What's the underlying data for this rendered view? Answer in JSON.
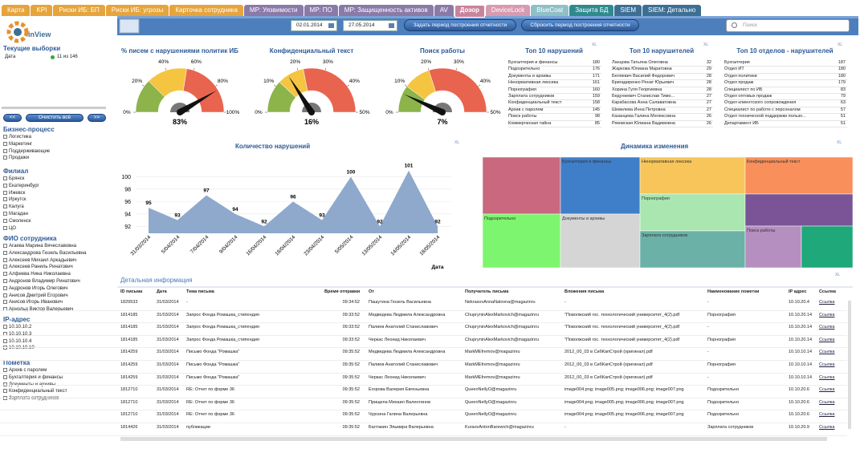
{
  "tabs": [
    {
      "label": "Карта",
      "color": "#e6a43c"
    },
    {
      "label": "KPI",
      "color": "#e6a43c"
    },
    {
      "label": "Риски ИБ: БП",
      "color": "#e6a43c"
    },
    {
      "label": "Риски ИБ: угрозы",
      "color": "#e6a43c"
    },
    {
      "label": "Карточка сотрудника",
      "color": "#e6a43c"
    },
    {
      "label": "МР: Уязвимости",
      "color": "#8a7aa8"
    },
    {
      "label": "МР: ПО",
      "color": "#8a7aa8"
    },
    {
      "label": "МР: Защищенность активов",
      "color": "#8a7aa8"
    },
    {
      "label": "AV",
      "color": "#8a7aa8"
    },
    {
      "label": "Дозор",
      "color": "#c8849c",
      "active": true
    },
    {
      "label": "DeviceLock",
      "color": "#d89ab0"
    },
    {
      "label": "BlueCoat",
      "color": "#8fc0c8"
    },
    {
      "label": "Защита БД",
      "color": "#2f8a8c"
    },
    {
      "label": "SIEM",
      "color": "#3d6f94"
    },
    {
      "label": "SIEM: Детально",
      "color": "#3d6f94"
    }
  ],
  "logo": "inView",
  "export_icon": "XL",
  "sidebar": {
    "current_title": "Текущие выборки",
    "current_label": "Дата",
    "current_value": "11 из 146",
    "prev_button": "<<",
    "clear_button": "Очистить всё",
    "next_button": ">>",
    "filters": [
      {
        "title": "Бизнес-процесс",
        "items": [
          "Логистика",
          "Маркетинг",
          "Поддерживающие",
          "Продажи"
        ]
      },
      {
        "title": "Филиал",
        "items": [
          "Брянск",
          "Екатеринбург",
          "Ижевск",
          "Иркутск",
          "Калуга",
          "Магадан",
          "Смоленск",
          "ЦО"
        ]
      },
      {
        "title": "ФИО сотрудника",
        "items": [
          "Агаева Марина Вячеславовна",
          "Александрова Гюзель Васильевна",
          "Алексеев Михаил Аркадьевич",
          "Алексеев Раниль Ринатович",
          "Алфеева Нина Николаевна",
          "Андронов Владимир Ринатович",
          "Андронов Игорь Олегович",
          "Анисов Дмитрий Егорович",
          "Анисов Игорь Иванович",
          "Арнольд Виктор Валерьевич"
        ]
      },
      {
        "title": "IP-адрес",
        "items": [
          "10.10.10.2",
          "10.10.10.3",
          "10.10.10.4",
          "10.10.10.10"
        ]
      },
      {
        "title": "Пометка",
        "items": [
          "Архив с паролем",
          "Бухгалтерия и финансы",
          "Документы и архивы",
          "Конфиденциальный текст",
          "Зарплата сотрудников"
        ]
      }
    ]
  },
  "toolbar": {
    "date_from": "02.01.2014",
    "date_to": "27.05.2014",
    "set_button": "Задать период построения отчетности",
    "reset_button": "Сбросить период построения отчетности",
    "search_placeholder": "Поиск"
  },
  "gauges": [
    {
      "title": "% писем с нарушениями политик ИБ",
      "value": 83,
      "value_label": "83%",
      "lim": [
        0,
        100
      ],
      "ticks": [
        {
          "value": 0,
          "label": "0%"
        },
        {
          "value": 20,
          "label": "20%"
        },
        {
          "value": 40,
          "label": "40%"
        },
        {
          "value": 60,
          "label": "60%"
        },
        {
          "value": 80,
          "label": "80%"
        },
        {
          "value": 100,
          "label": "100%"
        }
      ],
      "bands": [
        {
          "from": 0,
          "to": 25,
          "color": "#8cb44a"
        },
        {
          "from": 25,
          "to": 55,
          "color": "#f5c542"
        },
        {
          "from": 55,
          "to": 100,
          "color": "#e9644e"
        }
      ]
    },
    {
      "title": "Конфиденциальный текст",
      "value": 16,
      "value_label": "16%",
      "lim": [
        0,
        50
      ],
      "ticks": [
        {
          "value": 0,
          "label": "0%"
        },
        {
          "value": 10,
          "label": "10%"
        },
        {
          "value": 20,
          "label": "20%"
        },
        {
          "value": 30,
          "label": "30%"
        },
        {
          "value": 40,
          "label": "40%"
        },
        {
          "value": 50,
          "label": "50%"
        }
      ],
      "bands": [
        {
          "from": 0,
          "to": 12,
          "color": "#8cb44a"
        },
        {
          "from": 12,
          "to": 22,
          "color": "#f5c542"
        },
        {
          "from": 22,
          "to": 50,
          "color": "#e9644e"
        }
      ]
    },
    {
      "title": "Поиск работы",
      "value": 7,
      "value_label": "7%",
      "lim": [
        0,
        50
      ],
      "ticks": [
        {
          "value": 0,
          "label": "0%"
        },
        {
          "value": 10,
          "label": "10%"
        },
        {
          "value": 20,
          "label": "20%"
        },
        {
          "value": 30,
          "label": "30%"
        },
        {
          "value": 40,
          "label": "40%"
        },
        {
          "value": 50,
          "label": "50%"
        }
      ],
      "bands": [
        {
          "from": 0,
          "to": 10,
          "color": "#8cb44a"
        },
        {
          "from": 10,
          "to": 20,
          "color": "#f5c542"
        },
        {
          "from": 20,
          "to": 50,
          "color": "#e9644e"
        }
      ]
    }
  ],
  "top_tables": [
    {
      "title": "Топ 10 нарушений",
      "rows": [
        [
          "Бухгалтерия и финансы",
          180
        ],
        [
          "Подозрительно",
          176
        ],
        [
          "Документы и архивы",
          171
        ],
        [
          "Ненормативная лексика",
          161
        ],
        [
          "Порнография",
          160
        ],
        [
          "Зарплата сотрудников",
          159
        ],
        [
          "Конфиденциальный текст",
          158
        ],
        [
          "Архив с паролем",
          145
        ],
        [
          "Поиск работы",
          98
        ],
        [
          "Коммерческая тайна",
          85
        ]
      ]
    },
    {
      "title": "Топ 10 нарушителей",
      "rows": [
        [
          "Ланцова Татьяна Олеговна",
          32
        ],
        [
          "Жаркова Юлиана Маратовна",
          29
        ],
        [
          "Беляевич Василий Федорович",
          28
        ],
        [
          "Бригадиренко Ренат Юрьевич",
          28
        ],
        [
          "Хорина Гуля Георгиевна",
          28
        ],
        [
          "Бедункевич Станислав Тимо...",
          27
        ],
        [
          "Карабасова Анна Салаватовна",
          27
        ],
        [
          "Шевелева Инна Петровна",
          27
        ],
        [
          "Казанцева Галина Мелексовна",
          26
        ],
        [
          "Ряковская Юлиана Вадимовна",
          26
        ]
      ]
    },
    {
      "title": "Топ 10 отделов - нарушителей",
      "rows": [
        [
          "Бухгалтерия",
          187
        ],
        [
          "Отдел ИТ",
          180
        ],
        [
          "Отдел политики",
          180
        ],
        [
          "Отдел продаж",
          179
        ],
        [
          "Специалист по ИБ",
          83
        ],
        [
          "Отдел оптовых продаж",
          79
        ],
        [
          "Отдел клиентского сопровождения",
          63
        ],
        [
          "Специалист по работе с персоналом",
          57
        ],
        [
          "Отдел технической поддержки пользо...",
          51
        ],
        [
          "Департамент ИБ",
          51
        ]
      ]
    }
  ],
  "violations_chart": {
    "type": "area",
    "title": "Количество нарушений",
    "x_label": "Дата",
    "color": "#8ea9cc",
    "grid": true,
    "categories": [
      "31/03/2014",
      "5/04/2014",
      "7/04/2014",
      "9/04/2014",
      "16/04/2014",
      "18/04/2014",
      "23/04/2014",
      "5/05/2014",
      "13/05/2014",
      "14/05/2014",
      "18/05/2014"
    ],
    "values": [
      95,
      93,
      97,
      94,
      92,
      96,
      93,
      100,
      92,
      101,
      92
    ],
    "ylim": [
      91,
      102
    ],
    "yticks": [
      92,
      94,
      96,
      98,
      100
    ]
  },
  "treemap": {
    "title": "Динамика изменения",
    "items": [
      {
        "label": null,
        "color": "#c9687f"
      },
      {
        "label": "Бухгалтерия и финансы",
        "color": "#3f7fc9"
      },
      {
        "label": "Ненормативная лексика",
        "color": "#f7c55a"
      },
      {
        "label": "Конфиденциальный текст",
        "color": "#f98f5a"
      },
      {
        "label": "Порнография",
        "color": "#a9e6b0"
      },
      {
        "label": null,
        "color": "#7a5497"
      },
      {
        "label": "Подозрительно",
        "color": "#7ef56e"
      },
      {
        "label": "Документы и архивы",
        "color": "#d5d5d5"
      },
      {
        "label": "Зарплата сотрудников",
        "color": "#6bb1a8"
      },
      {
        "label": "Поиск работы",
        "color": "#b58fc0"
      },
      {
        "label": null,
        "color": "#1fa87a"
      }
    ]
  },
  "detail": {
    "title": "Детальная информация",
    "columns": [
      "ID письма",
      "Дата",
      "Тема письма",
      "Время отправки",
      "От",
      "Получатель письма",
      "Вложения письма",
      "Наименование пометки",
      "IP адрес",
      "Ссылка"
    ],
    "rows": [
      [
        "1829533",
        "31/03/2014",
        "-",
        "09:34:52",
        "Пашутина Гюзель Васильевна",
        "NekrasovAnnaNalovna@magazinru",
        "-",
        "-",
        "10.10.20.4",
        "Ссылка"
      ],
      [
        "1814185",
        "31/03/2014",
        "Запрос Фонда Ромашка_стипендия",
        "09:33:52",
        "Медведева Людмила Александровна",
        "ChupryninAlexMarkovich@magazinru",
        "\"Поволжский гос. технологический университет_4(2).pdf",
        "Порнография",
        "10.10.20.14",
        "Ссылка"
      ],
      [
        "1814185",
        "31/03/2014",
        "Запрос Фонда Ромашка_стипендия",
        "09:33:52",
        "Палиев Анатолий Станиславович",
        "ChupryninAlexMarkovich@magazinru",
        "\"Поволжский гос. технологический университет_4(2).pdf",
        "-",
        "10.10.20.14",
        "Ссылка"
      ],
      [
        "1814185",
        "31/03/2014",
        "Запрос Фонда Ромашка_стипендия",
        "09:33:52",
        "Черкас Леонид Николаевич",
        "ChupryninAlexMarkovich@magazinru",
        "\"Поволжский гос. технологический университет_4(2).pdf",
        "Порнография",
        "10.10.20.14",
        "Ссылка"
      ],
      [
        "1814259",
        "31/03/2014",
        "Письмо Фонда \"Ромашка\"",
        "09:35:52",
        "Медведева Людмила Александровна",
        "MarkMEfremov@magazinru",
        "2012_00_03 в СибКапСтрой (оригинал).pdf",
        "-",
        "10.10.10.14",
        "Ссылка"
      ],
      [
        "1814259",
        "31/03/2014",
        "Письмо Фонда \"Ромашка\"",
        "09:35:52",
        "Палиев Анатолий Станиславович",
        "MarkMEfremov@magazinru",
        "2012_00_03 в СибКапСтрой (оригинал).pdf",
        "Порнография",
        "10.10.10.14",
        "Ссылка"
      ],
      [
        "1814259",
        "31/03/2014",
        "Письмо Фонда \"Ромашка\"",
        "09:35:52",
        "Черкас Леонид Николаевич",
        "MarkMEfremov@magazinru",
        "2012_00_03 в СибКапСтрой (оригинал).pdf",
        "-",
        "10.10.10.14",
        "Ссылка"
      ],
      [
        "1812710",
        "31/03/2014",
        "RE: Отчет по форме 36",
        "09:35:52",
        "Егорова Валерия Евгеньевна",
        "QueenNellyO@magazinru",
        "image004.png; image005.png; image006.png; image007.png",
        "Подозрительно",
        "10.10.20.6",
        "Ссылка"
      ],
      [
        "1812710",
        "31/03/2014",
        "RE: Отчет по форме 36",
        "09:35:52",
        "Прищепа Михаил Валентинов",
        "QueenNellyO@magazinru",
        "image004.png; image005.png; image006.png; image007.png",
        "Подозрительно",
        "10.10.20.6",
        "Ссылка"
      ],
      [
        "1812710",
        "31/03/2014",
        "RE: Отчет по форме 36",
        "09:35:52",
        "Чурсина Галина Валерьевна",
        "QueenNellyO@magazinru",
        "image004.png; image005.png; image006.png; image007.png",
        "Подозрительно",
        "10.10.20.6",
        "Ссылка"
      ],
      [
        "1814426",
        "31/03/2014",
        "публикации",
        "09:35:52",
        "Балтакин Эльмира Валерьевна",
        "KuraovAntonBarewich@magazinru",
        "-",
        "Зарплата сотрудников",
        "10.10.20.9",
        "Ссылка"
      ]
    ]
  }
}
